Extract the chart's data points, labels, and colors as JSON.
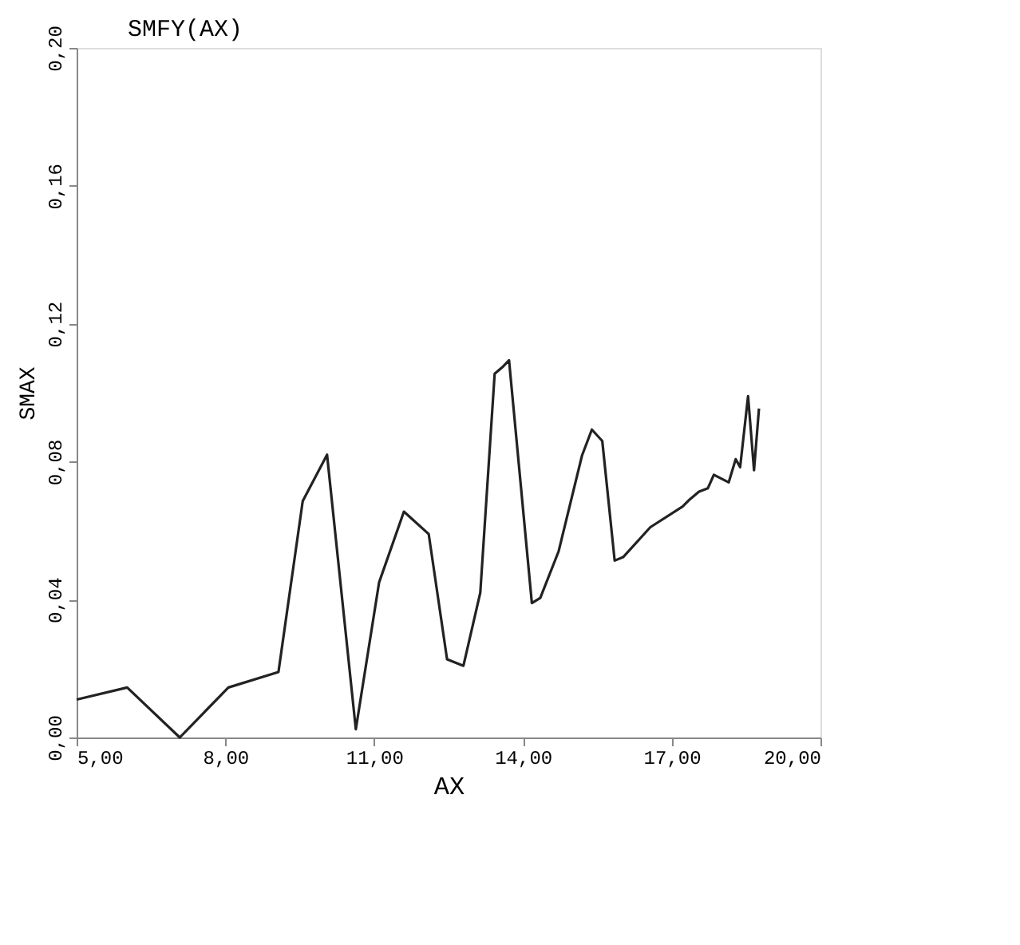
{
  "chart_data": {
    "type": "line",
    "title": "SMFY(AX)",
    "xlabel": "AX",
    "ylabel": "SMAX",
    "x": [
      5.0,
      6.02,
      7.08,
      8.06,
      9.07,
      9.56,
      10.05,
      10.63,
      11.1,
      11.6,
      12.1,
      12.47,
      12.8,
      13.14,
      13.43,
      13.6,
      13.72,
      14.18,
      14.35,
      14.72,
      15.19,
      15.39,
      15.6,
      15.85,
      16.02,
      16.57,
      17.22,
      17.36,
      17.55,
      17.73,
      17.85,
      18.15,
      18.29,
      18.38,
      18.54,
      18.66,
      18.76
    ],
    "series": [
      {
        "color": "#222222",
        "values": [
          0.011,
          0.0145,
          0.0,
          0.0145,
          0.019,
          0.0686,
          0.082,
          0.0024,
          0.045,
          0.0655,
          0.059,
          0.0227,
          0.0208,
          0.042,
          0.1055,
          0.1076,
          0.1094,
          0.039,
          0.0405,
          0.054,
          0.0817,
          0.0893,
          0.086,
          0.0513,
          0.0523,
          0.061,
          0.067,
          0.069,
          0.0713,
          0.0723,
          0.0762,
          0.074,
          0.0807,
          0.0784,
          0.099,
          0.0775,
          0.0954
        ]
      }
    ],
    "xlim": [
      5,
      20
    ],
    "ylim": [
      0,
      0.2
    ],
    "xticks": [
      {
        "value": 5,
        "label": "5,00"
      },
      {
        "value": 8,
        "label": "8,00"
      },
      {
        "value": 11,
        "label": "11,00"
      },
      {
        "value": 14,
        "label": "14,00"
      },
      {
        "value": 17,
        "label": "17,00"
      },
      {
        "value": 20,
        "label": "20,00"
      }
    ],
    "yticks": [
      {
        "value": 0,
        "label": "0,00"
      },
      {
        "value": 0.04,
        "label": "0,04"
      },
      {
        "value": 0.08,
        "label": "0,08"
      },
      {
        "value": 0.12,
        "label": "0,12"
      },
      {
        "value": 0.16,
        "label": "0,16"
      },
      {
        "value": 0.2,
        "label": "0,20"
      }
    ],
    "grid": false,
    "marker": "none",
    "line_style": "solid"
  }
}
